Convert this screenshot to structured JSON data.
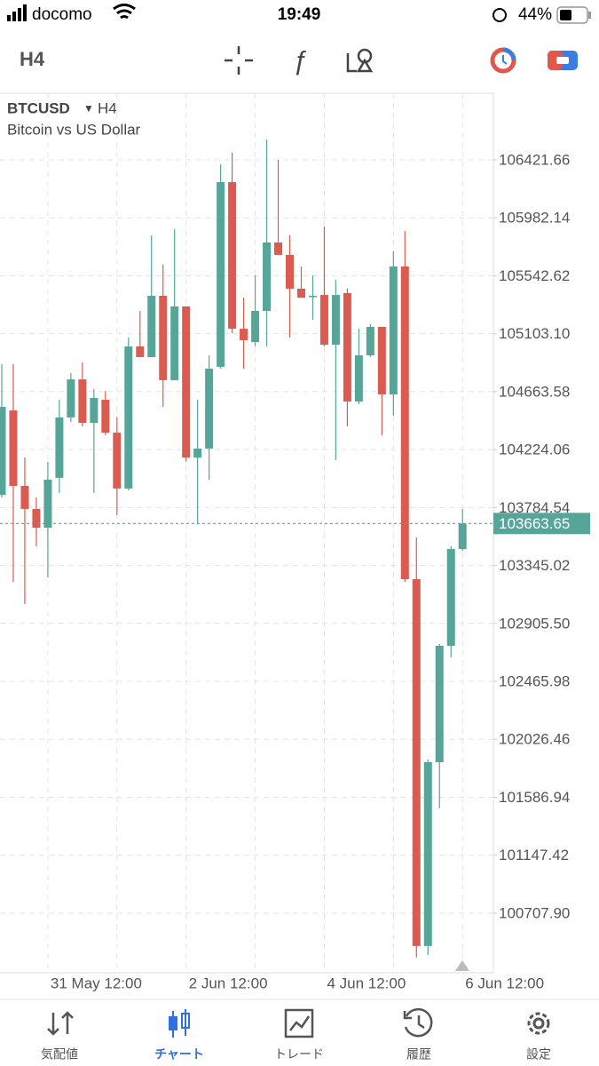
{
  "status_bar": {
    "carrier": "docomo",
    "time": "19:49",
    "battery": "44%"
  },
  "toolbar": {
    "timeframe": "H4"
  },
  "chart_data": {
    "type": "candlestick",
    "symbol": "BTCUSD",
    "timeframe": "H4",
    "description": "Bitcoin vs US Dollar",
    "categories": [
      null,
      null,
      null,
      null,
      "31 May 12:00",
      null,
      null,
      null,
      null,
      null,
      null,
      null,
      null,
      null,
      null,
      null,
      "2 Jun 12:00",
      null,
      null,
      null,
      null,
      null,
      null,
      null,
      null,
      null,
      null,
      null,
      "4 Jun 12:00",
      null,
      null,
      null,
      null,
      null,
      null,
      null,
      null,
      null,
      null,
      null,
      "6 Jun 12:00"
    ],
    "open": [
      103881,
      104521,
      103949,
      103774,
      103632,
      104010,
      104468,
      104757,
      104427,
      104602,
      104353,
      103929,
      105007,
      104926,
      105391,
      104751,
      105310,
      104164,
      104232,
      104852,
      106253,
      105141,
      105040,
      105276,
      105795,
      105701,
      105445,
      105384,
      105397,
      105020,
      105411,
      104589,
      104939,
      105155,
      104643,
      105613,
      103241,
      100459,
      101853,
      102736,
      103470
    ],
    "high": [
      104872,
      104872,
      104164,
      103861,
      104131,
      104602,
      104805,
      104885,
      104683,
      104670,
      104468,
      105074,
      105276,
      105849,
      105627,
      105896,
      105310,
      104602,
      104939,
      106388,
      106476,
      105377,
      105546,
      106577,
      106422,
      105849,
      105613,
      105546,
      105916,
      105512,
      105445,
      105141,
      105175,
      105155,
      105728,
      105883,
      103558,
      101873,
      102749,
      103491,
      103774
    ],
    "low": [
      103861,
      103221,
      103053,
      103491,
      103255,
      103895,
      104434,
      104400,
      103895,
      104333,
      103726,
      103915,
      104926,
      104926,
      104548,
      104751,
      104131,
      103659,
      103996,
      104838,
      105108,
      104838,
      105007,
      105007,
      105701,
      105074,
      105377,
      105209,
      105007,
      104144,
      104400,
      104569,
      104926,
      104333,
      104481,
      103221,
      100371,
      100391,
      101503,
      102648,
      103457
    ],
    "close": [
      104548,
      103949,
      103774,
      103632,
      103996,
      104468,
      104757,
      104427,
      104616,
      104353,
      103929,
      105007,
      104926,
      105391,
      104751,
      105310,
      104164,
      104232,
      104838,
      106253,
      105141,
      105054,
      105276,
      105795,
      105701,
      105445,
      105377,
      105391,
      105020,
      105397,
      104589,
      104939,
      105155,
      104643,
      105613,
      103241,
      100459,
      101853,
      102736,
      103470,
      103663.65
    ],
    "up_color": "#55a598",
    "down_color": "#dc5b50",
    "last_price": 103663.65,
    "ylim": [
      100256,
      106927
    ],
    "yticks": [
      106421.66,
      105982.14,
      105542.62,
      {
        "value": 105103.1,
        "label": "105103.10"
      },
      104663.58,
      104224.06,
      103784.54,
      103345.02,
      {
        "value": 102905.5,
        "label": "102905.50"
      },
      102465.98,
      102026.46,
      101586.94,
      101147.42,
      {
        "value": 100707.9,
        "label": "100707.90"
      }
    ],
    "grid": true
  },
  "nav": {
    "items": [
      "気配値",
      "チャート",
      "トレード",
      "履歴",
      "設定"
    ],
    "active": 1
  }
}
